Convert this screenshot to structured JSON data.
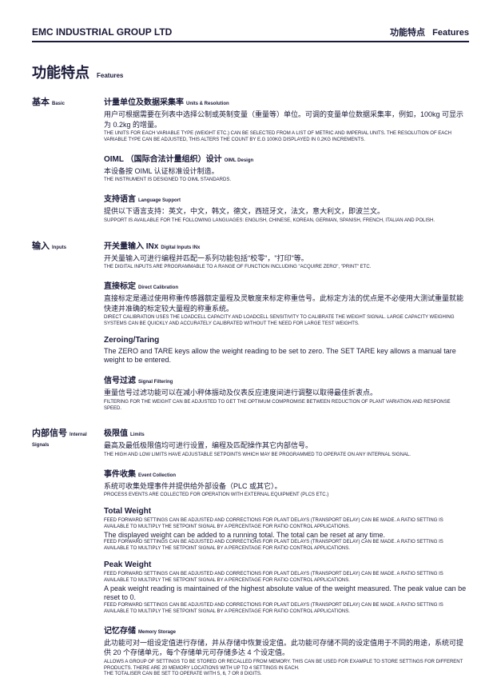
{
  "header": {
    "company": "EMC INDUSTRIAL GROUP LTD",
    "right_cn": "功能特点",
    "right_en": "Features"
  },
  "title": {
    "main": "功能特点",
    "sub": "Features"
  },
  "sections": [
    {
      "label_cn": "基本",
      "label_en": "Basic",
      "features": [
        {
          "title_cn": "计量单位及数据采集率",
          "title_en": "Units & Resolution",
          "desc_cn": "用户可根据需要在列表中选择公制或英制变量（重量等）单位。可调的变量单位数据采集率，例如，100kg 可显示为 0.2kg 的增量。",
          "desc_en": "The units for each variable type (weight etc.) can be selected from a list of metric and imperial units. The resolution of each variable type can be adjusted, this alters the count by e.g 100kg displayed in 0.2kg increments."
        },
        {
          "title_cn": "OIML （国际合法计量组织）设计",
          "title_en": "OIML Design",
          "desc_cn": "本设备按 OIML 认证标准设计制造。",
          "desc_en": "The instrument is designed to OIML standards."
        },
        {
          "title_cn": "支持语言",
          "title_en": "Language Support",
          "desc_cn": "提供以下语言支持：英文，中文，韩文，德文，西班牙文，法文，意大利文，即波兰文。",
          "desc_en": "Support is available for the following languages: English, Chinese, Korean, German, Spanish, French, Italian and Polish."
        }
      ]
    },
    {
      "label_cn": "输入",
      "label_en": "Inputs",
      "features": [
        {
          "title_cn": "开关量输入 INx",
          "title_en": "Digital Inputs INx",
          "desc_cn": "开关量输入可进行编程并匹配一系列功能包括\"校零\"，\"打印\"等。",
          "desc_en": "The digital inputs are programmable to a range of function including \"acquire zero\", \"print\" etc."
        },
        {
          "title_cn": "直接标定",
          "title_en": "Direct Calibration",
          "desc_cn": "直接标定是通过使用称重传感器额定量程及灵敏度来标定称重信号。此标定方法的优点是不必使用大测试重量就能快速并准确的标定较大量程的称重系统。",
          "desc_en": "Direct calibration uses the loadcell capacity and loadcell sensitivity to calibrate the weight signal. Large capacity weighing systems can be quickly and accurately calibrated without the need for large test weights."
        },
        {
          "title_cn": "Zeroing/Taring",
          "title_en": "",
          "desc_cn_normal": "The ZERO and TARE keys allow the weight reading to be set to zero.  The SET TARE key allows a manual tare weight to be entered.",
          "desc_en": ""
        },
        {
          "title_cn": "信号过滤",
          "title_en": "Signal Filtering",
          "desc_cn": "重量信号过滤功能可以在减小秤体振动及仪表反应速度间进行调整以取得最佳折衷点。",
          "desc_en": "Filtering for the weight can be adjusted to get the optimum compromise between reduction of plant variation and response speed."
        }
      ]
    },
    {
      "label_cn": "内部信号",
      "label_en": "Internal Signals",
      "features": [
        {
          "title_cn": "极限值",
          "title_en": "Limits",
          "desc_cn": "最高及最低极限值均可进行设置，编程及匹配操作其它内部信号。",
          "desc_en": "The high and low limits have adjustable setpoints which may be programmed to operate on any internal signal."
        },
        {
          "title_cn": "事件收集",
          "title_en": "Event Collection",
          "desc_cn": "系统可收集处理事件并提供给外部设备（PLC 或其它）。",
          "desc_en": "Process events are collected for operation with external equipment (PLCs etc.)"
        },
        {
          "title_cn": "Total Weight",
          "title_en": "",
          "desc_en_first": "Feed forward settings can be adjusted and corrections for plant delays (transport delay) can be made. A ratio setting is available to multiply the setpoint signal by a percentage for ratio control applications.",
          "desc_cn_normal": "The displayed weight can be added to a running total. The total can be reset at any time.",
          "desc_en": "Feed forward settings can be adjusted and corrections for plant delays (transport delay) can be made. A ratio setting is available to multiply the setpoint signal by a percentage for ratio control applications."
        },
        {
          "title_cn": "Peak Weight",
          "title_en": "",
          "desc_en_first": "Feed forward settings can be adjusted and corrections for plant delays (transport delay) can be made. A ratio setting is available to multiply the setpoint signal by a percentage for ratio control applications.",
          "desc_cn_normal": "A peak weight reading is maintained of the highest absolute value of the weight measured. The peak value can be reset to 0.",
          "desc_en": "Feed forward settings can be adjusted and corrections for plant delays (transport delay) can be made. A ratio setting is available to multiply the setpoint signal by a percentage for ratio control applications."
        },
        {
          "title_cn": "记忆存储",
          "title_en": "Memory Storage",
          "desc_cn": "此功能可对一组设定值进行存储，并从存储中恢复设定值。此功能可存储不同的设定值用于不同的用途，系统可提供 20 个存储单元，每个存储单元可存储多达 4 个设定值。",
          "desc_en": "Allows a group of settings to be stored or recalled from memory. This can be used for example to store settings for different products. There are 20 memory locations with up to 4 settings in each.",
          "desc_en2": "The totaliser can be set to operate with 5, 6, 7 or 8 digits."
        }
      ]
    }
  ]
}
